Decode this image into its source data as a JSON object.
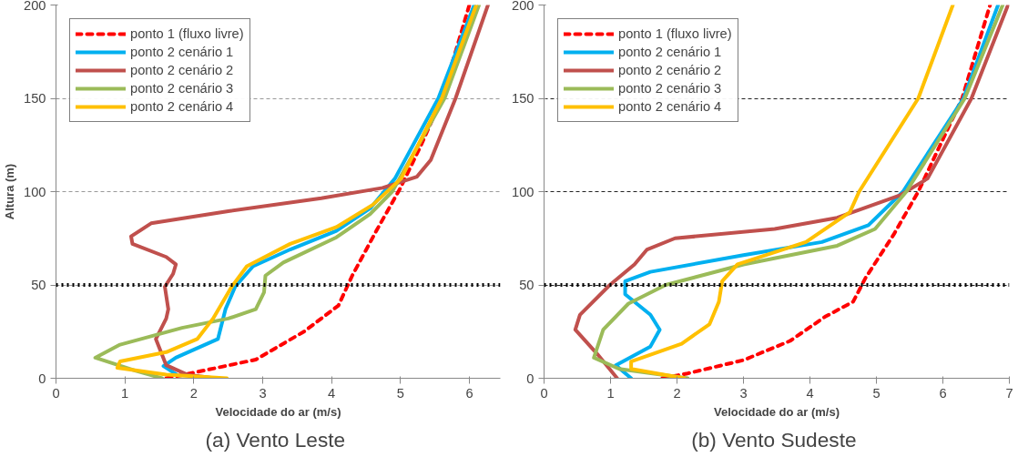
{
  "chart_data": [
    {
      "type": "line",
      "title": "(a)  Vento Leste",
      "xlabel": "Velocidade do ar (m/s)",
      "ylabel": "Altura (m)",
      "xlim": [
        0,
        6.45
      ],
      "ylim": [
        0,
        200
      ],
      "xticks": [
        0,
        1,
        2,
        3,
        4,
        5,
        6
      ],
      "yticks": [
        0,
        50,
        100,
        150,
        200
      ],
      "grid": "y",
      "legend": "top left",
      "ref_lines": [
        {
          "axis": "y",
          "value": 50,
          "color": "#000000",
          "line_style": "dotted"
        }
      ],
      "series": [
        {
          "name": "ponto 1 (fluxo livre)",
          "color": "#ff0000",
          "line_style": "dashed",
          "x": [
            1.6,
            2.0,
            2.9,
            3.6,
            4.1,
            4.3,
            4.65,
            5.0,
            5.3,
            5.6,
            6.0
          ],
          "values": [
            0,
            3,
            10,
            25,
            39,
            55,
            79,
            102,
            125,
            150,
            200
          ]
        },
        {
          "name": "ponto 2 cenário 1",
          "color": "#00b0f0",
          "x": [
            1.75,
            1.56,
            1.74,
            2.35,
            2.46,
            2.6,
            2.86,
            3.4,
            4.07,
            4.56,
            4.92,
            5.55,
            6.07
          ],
          "values": [
            2,
            6.5,
            11,
            21,
            37,
            49,
            60,
            69,
            79,
            91,
            107,
            150,
            200
          ]
        },
        {
          "name": "ponto 2 cenário 2",
          "color": "#c0504d",
          "x": [
            2.3,
            1.9,
            1.6,
            1.45,
            1.6,
            1.63,
            1.58,
            1.7,
            1.74,
            1.6,
            1.11,
            1.09,
            1.38,
            2.5,
            3.85,
            4.74,
            5.24,
            5.44,
            5.8,
            6.27
          ],
          "values": [
            0,
            2,
            7,
            21,
            32,
            37,
            49,
            56,
            61,
            65,
            72,
            76,
            83,
            89.5,
            96.5,
            102,
            108,
            117,
            150,
            200
          ]
        },
        {
          "name": "ponto 2 cenário 3",
          "color": "#9bbb59",
          "x": [
            1.54,
            1.16,
            0.57,
            0.93,
            1.83,
            2.5,
            2.9,
            3.02,
            3.04,
            3.3,
            4.07,
            4.56,
            4.88,
            5.64,
            6.14
          ],
          "values": [
            0,
            4,
            11,
            18,
            27,
            32,
            37,
            46,
            55,
            62,
            75.5,
            88,
            100,
            150,
            200
          ]
        },
        {
          "name": "ponto 2 cenário 4",
          "color": "#ffc000",
          "x": [
            2.48,
            1.6,
            0.89,
            0.93,
            1.6,
            2.05,
            2.28,
            2.55,
            2.77,
            3.4,
            4.07,
            4.6,
            5.01,
            5.6,
            6.1
          ],
          "values": [
            0,
            2,
            5.6,
            9,
            14,
            21,
            32,
            49,
            60,
            72,
            81,
            93,
            107,
            150,
            200
          ]
        }
      ]
    },
    {
      "type": "line",
      "title": "(b)  Vento Sudeste",
      "xlabel": "Velocidade do ar (m/s)",
      "xlim": [
        0,
        7
      ],
      "ylim": [
        0,
        200
      ],
      "xticks": [
        0,
        1,
        2,
        3,
        4,
        5,
        6,
        7
      ],
      "yticks": [
        0,
        50,
        100,
        150,
        200
      ],
      "grid": "y",
      "legend": "top left",
      "ref_lines": [
        {
          "axis": "y",
          "value": 50,
          "color": "#000000",
          "line_style": "dotted"
        }
      ],
      "series": [
        {
          "name": "ponto 1 (fluxo livre)",
          "color": "#ff0000",
          "line_style": "dashed",
          "x": [
            1.78,
            2.16,
            3.0,
            3.7,
            4.23,
            4.65,
            4.84,
            5.26,
            5.63,
            6.29,
            6.71
          ],
          "values": [
            0,
            2.6,
            9.7,
            20,
            33,
            41,
            54,
            77,
            100,
            150,
            200
          ]
        },
        {
          "name": "ponto 2 cenário 1",
          "color": "#00b0f0",
          "x": [
            1.31,
            1.08,
            1.6,
            1.74,
            1.6,
            1.22,
            1.22,
            1.6,
            3.0,
            4.18,
            4.88,
            5.4,
            6.31,
            6.83
          ],
          "values": [
            0,
            7,
            17,
            26,
            34,
            45,
            52,
            57,
            66,
            73,
            82,
            100,
            150,
            200
          ]
        },
        {
          "name": "ponto 2 cenário 2",
          "color": "#c0504d",
          "x": [
            1.1,
            0.8,
            0.47,
            0.54,
            0.99,
            1.36,
            1.55,
            1.97,
            3.47,
            4.41,
            5.35,
            5.77,
            6.43,
            6.98
          ],
          "values": [
            0,
            13,
            26,
            34,
            50,
            61,
            69,
            75,
            80,
            86,
            98,
            107,
            150,
            200
          ]
        },
        {
          "name": "ponto 2 cenário 3",
          "color": "#9bbb59",
          "x": [
            2.16,
            1.13,
            0.75,
            0.89,
            1.27,
            1.83,
            3.0,
            4.41,
            4.98,
            5.45,
            6.33,
            6.9
          ],
          "values": [
            0,
            5,
            11,
            26,
            40,
            50,
            61,
            71,
            80,
            100,
            150,
            200
          ]
        },
        {
          "name": "ponto 2 cenário 4",
          "color": "#ffc000",
          "x": [
            2.11,
            1.31,
            1.31,
            2.07,
            2.49,
            2.63,
            2.68,
            2.91,
            3.94,
            4.6,
            4.74,
            5.63,
            6.15
          ],
          "values": [
            0,
            5,
            9,
            18.5,
            29,
            41,
            52,
            61,
            73,
            89,
            100,
            150,
            200
          ]
        }
      ]
    }
  ]
}
